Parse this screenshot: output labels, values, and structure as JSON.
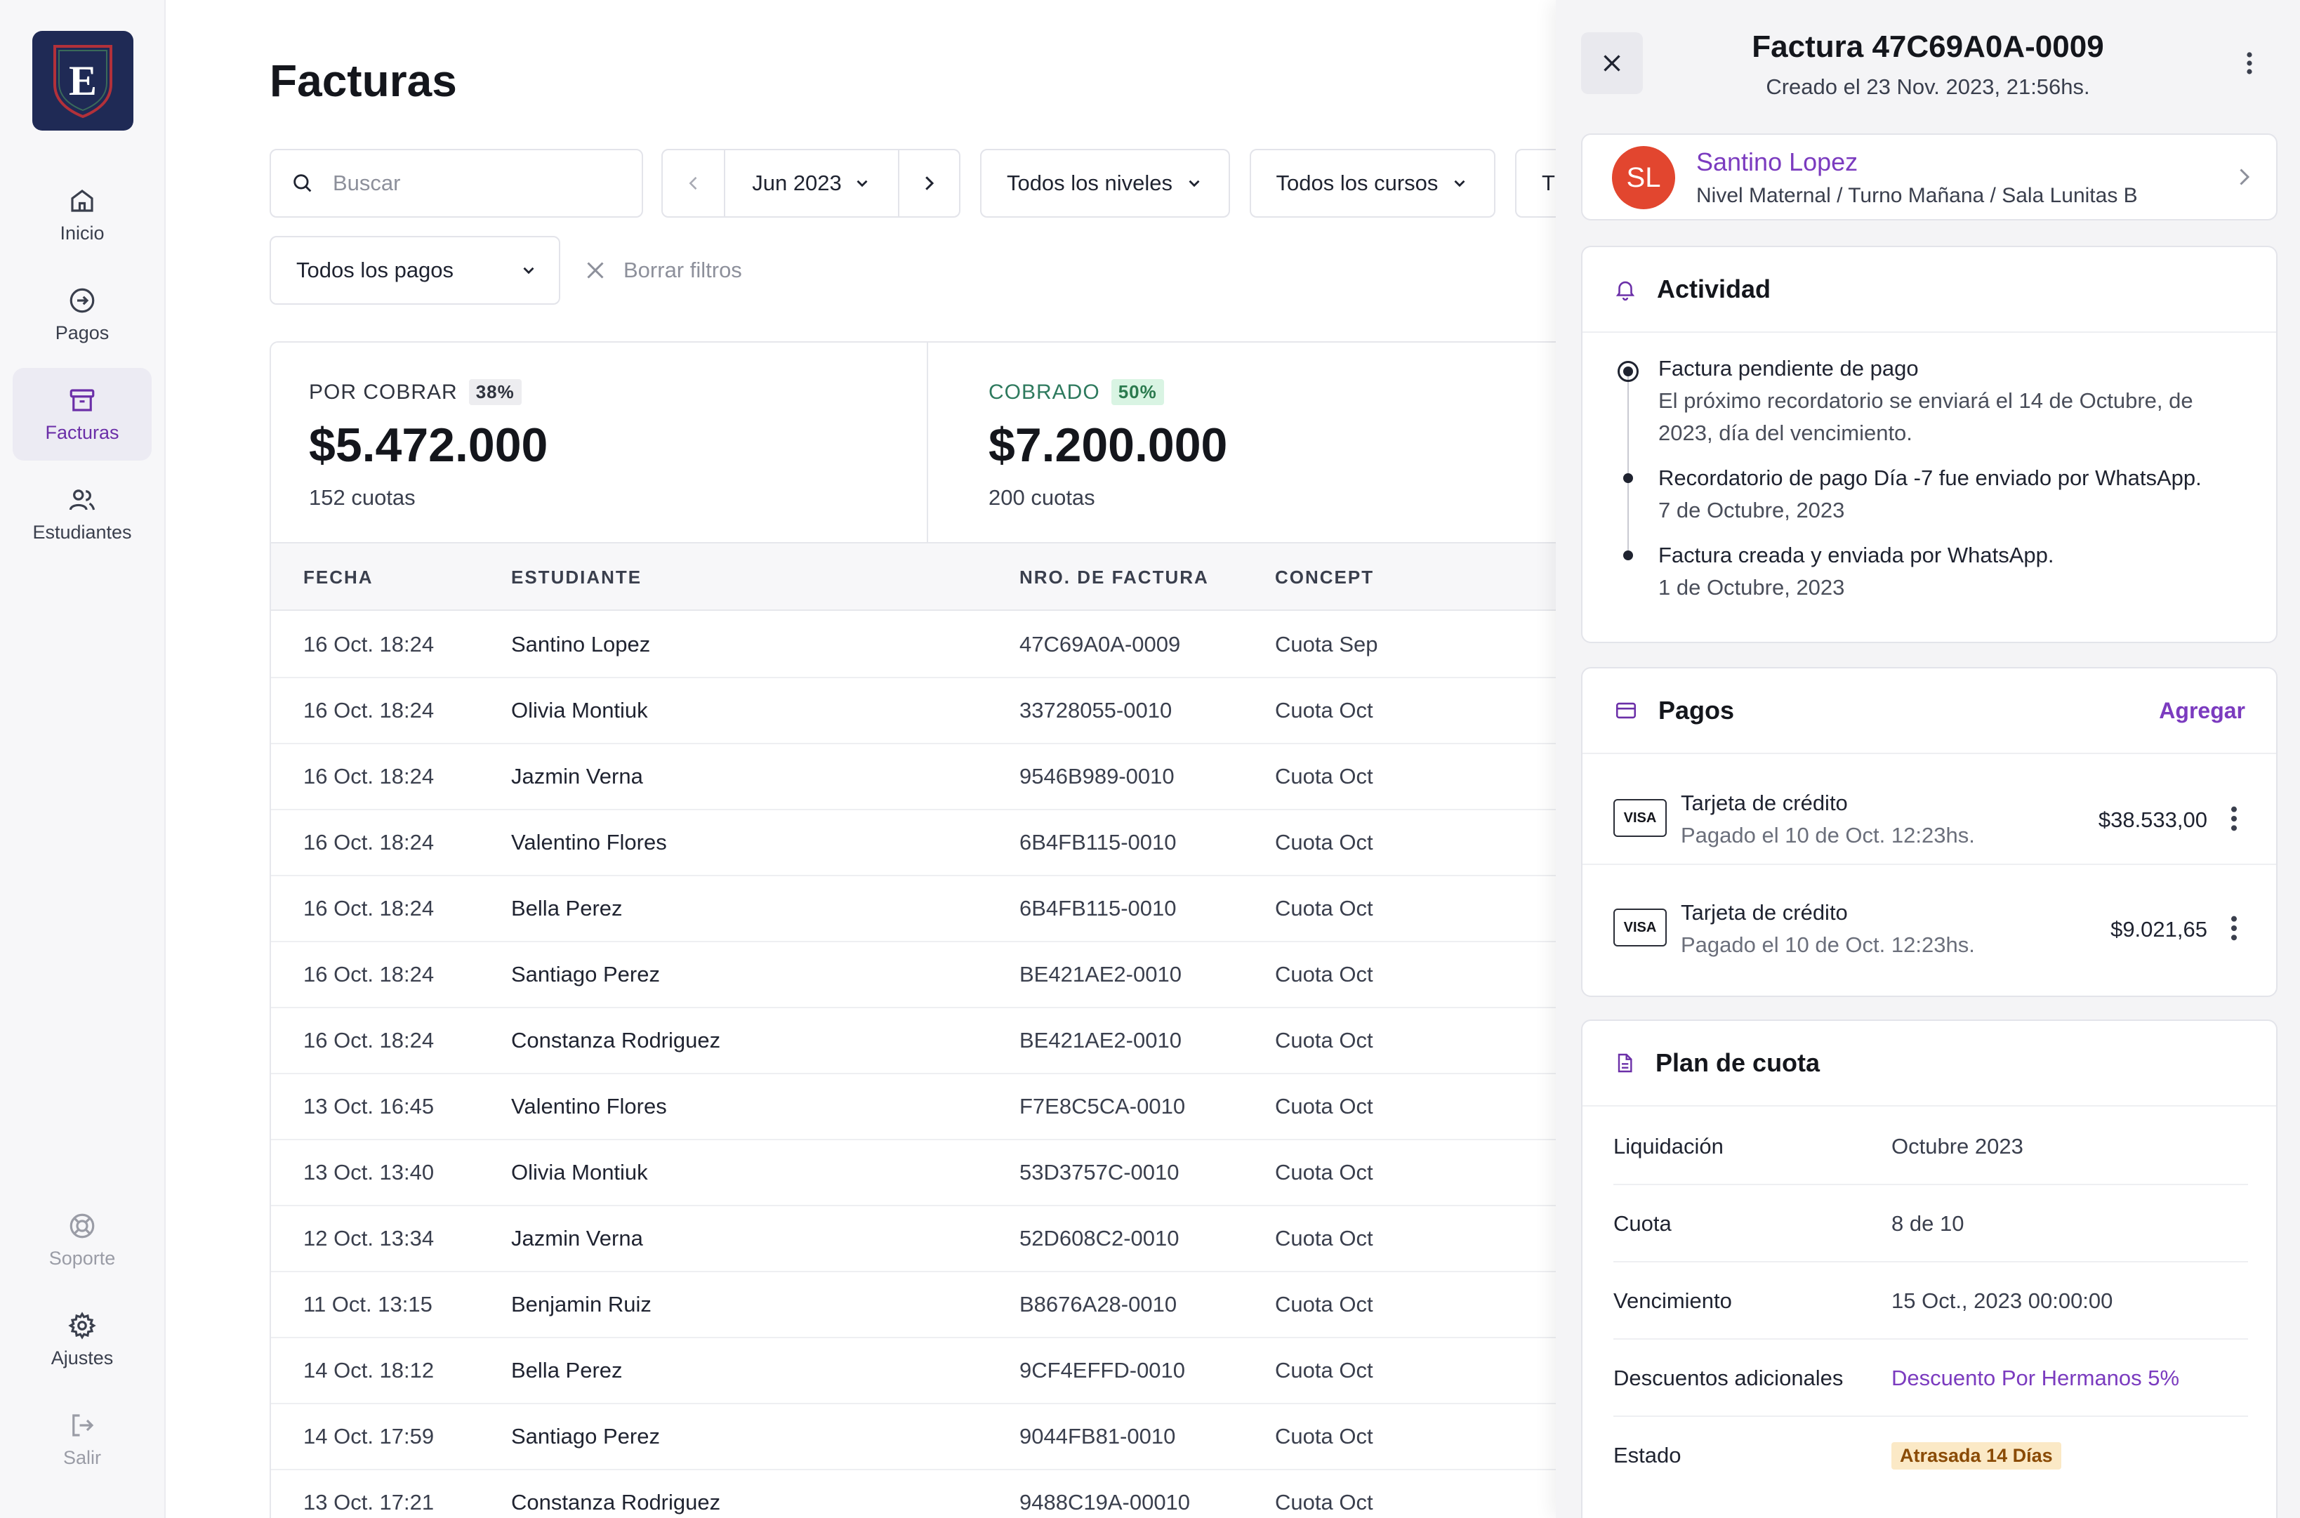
{
  "sidebar": {
    "logo_letter": "E",
    "items": [
      {
        "label": "Inicio",
        "icon": "home-icon"
      },
      {
        "label": "Pagos",
        "icon": "arrow-circle-icon"
      },
      {
        "label": "Facturas",
        "icon": "archive-icon",
        "active": true
      },
      {
        "label": "Estudiantes",
        "icon": "users-icon"
      }
    ],
    "bottom": [
      {
        "label": "Soporte",
        "icon": "lifebuoy-icon"
      },
      {
        "label": "Ajustes",
        "icon": "gear-icon"
      },
      {
        "label": "Salir",
        "icon": "logout-icon"
      }
    ]
  },
  "main": {
    "title": "Facturas",
    "filters": {
      "search_placeholder": "Buscar",
      "month": "Jun 2023",
      "levels": "Todos los niveles",
      "courses": "Todos los cursos",
      "extra": "T",
      "payments": "Todos los pagos",
      "clear": "Borrar filtros"
    },
    "stats": [
      {
        "label": "POR COBRAR",
        "pct": "38%",
        "amount": "$5.472.000",
        "sub": "152 cuotas"
      },
      {
        "label": "COBRADO",
        "pct": "50%",
        "amount": "$7.200.000",
        "sub": "200 cuotas"
      }
    ],
    "table": {
      "columns": [
        "FECHA",
        "ESTUDIANTE",
        "NRO. DE FACTURA",
        "CONCEPT"
      ],
      "rows": [
        [
          "16 Oct. 18:24",
          "Santino Lopez",
          "47C69A0A-0009",
          "Cuota Sep"
        ],
        [
          "16 Oct. 18:24",
          "Olivia Montiuk",
          "33728055-0010",
          "Cuota Oct"
        ],
        [
          "16 Oct. 18:24",
          "Jazmin Verna",
          "9546B989-0010",
          "Cuota Oct"
        ],
        [
          "16 Oct. 18:24",
          "Valentino Flores",
          "6B4FB115-0010",
          "Cuota Oct"
        ],
        [
          "16 Oct. 18:24",
          "Bella Perez",
          "6B4FB115-0010",
          "Cuota Oct"
        ],
        [
          "16 Oct. 18:24",
          "Santiago Perez",
          "BE421AE2-0010",
          "Cuota Oct"
        ],
        [
          "16 Oct. 18:24",
          "Constanza Rodriguez",
          "BE421AE2-0010",
          "Cuota Oct"
        ],
        [
          "13 Oct. 16:45",
          "Valentino Flores",
          "F7E8C5CA-0010",
          "Cuota Oct"
        ],
        [
          "13 Oct. 13:40",
          "Olivia Montiuk",
          "53D3757C-0010",
          "Cuota Oct"
        ],
        [
          "12 Oct. 13:34",
          "Jazmin Verna",
          "52D608C2-0010",
          "Cuota Oct"
        ],
        [
          "11 Oct. 13:15",
          "Benjamin Ruiz",
          "B8676A28-0010",
          "Cuota Oct"
        ],
        [
          "14 Oct. 18:12",
          "Bella Perez",
          "9CF4EFFD-0010",
          "Cuota Oct"
        ],
        [
          "14 Oct. 17:59",
          "Santiago Perez",
          "9044FB81-0010",
          "Cuota Oct"
        ],
        [
          "13 Oct. 17:21",
          "Constanza Rodriguez",
          "9488C19A-00010",
          "Cuota Oct"
        ]
      ]
    }
  },
  "drawer": {
    "title": "Factura 47C69A0A-0009",
    "subtitle": "Creado el 23 Nov. 2023, 21:56hs.",
    "student": {
      "initials": "SL",
      "name": "Santino Lopez",
      "info": "Nivel Maternal / Turno Mañana / Sala Lunitas B"
    },
    "activity": {
      "title": "Actividad",
      "items": [
        {
          "title": "Factura pendiente de pago",
          "desc1": "El próximo recordatorio se enviará el 14 de Octubre, de",
          "desc2": "2023, día del vencimiento."
        },
        {
          "title": "Recordatorio de pago Día -7 fue enviado por WhatsApp.",
          "desc1": "7 de Octubre, 2023"
        },
        {
          "title": "Factura creada y enviada por WhatsApp.",
          "desc1": "1 de Octubre, 2023"
        }
      ]
    },
    "payments": {
      "title": "Pagos",
      "add": "Agregar",
      "items": [
        {
          "brand": "VISA",
          "title": "Tarjeta de crédito",
          "sub": "Pagado el 10 de Oct. 12:23hs.",
          "amount": "$38.533,00"
        },
        {
          "brand": "VISA",
          "title": "Tarjeta de crédito",
          "sub": "Pagado el 10 de Oct. 12:23hs.",
          "amount": "$9.021,65"
        }
      ]
    },
    "plan": {
      "title": "Plan de cuota",
      "rows": [
        {
          "key": "Liquidación",
          "value": "Octubre 2023"
        },
        {
          "key": "Cuota",
          "value": "8 de 10"
        },
        {
          "key": "Vencimiento",
          "value": "15 Oct., 2023 00:00:00"
        },
        {
          "key": "Descuentos adicionales",
          "value": "Descuento Por Hermanos 5%"
        },
        {
          "key": "Estado",
          "value": "Atrasada 14 Días"
        }
      ]
    }
  }
}
